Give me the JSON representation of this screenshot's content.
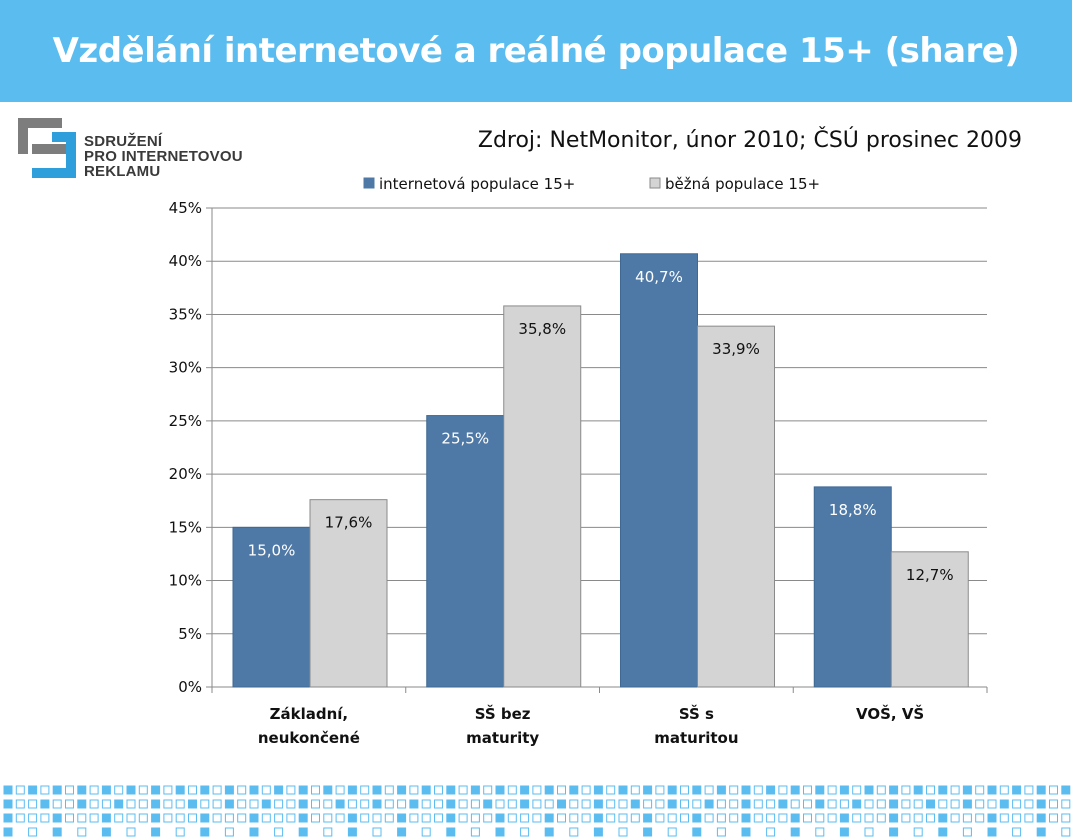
{
  "page": {
    "title": "Vzdělání internetové a reálné populace 15+ (share)",
    "source": "Zdroj: NetMonitor, únor 2010; ČSÚ prosinec 2009",
    "logo": {
      "lines": [
        "SDRUŽENÍ",
        "PRO INTERNETOVOU",
        "REKLAMU"
      ]
    },
    "colors": {
      "header": "#5bbcf0",
      "logo_blue": "#2f9fdc",
      "logo_gray": "#7d7d7d",
      "pattern": "#5bbcf0"
    }
  },
  "chart_data": {
    "type": "bar",
    "categories": [
      [
        "Základní,",
        "neukončené"
      ],
      [
        "SŠ bez",
        "maturity"
      ],
      [
        "SŠ s",
        "maturitou"
      ],
      [
        "VOŠ, VŠ"
      ]
    ],
    "series": [
      {
        "name": "internetová populace 15+",
        "color": "#4e79a7",
        "label_color": "#ffffff",
        "values": [
          15.0,
          25.5,
          40.7,
          18.8
        ],
        "labels": [
          "15,0%",
          "25,5%",
          "40,7%",
          "18,8%"
        ]
      },
      {
        "name": "běžná populace 15+",
        "color": "#d4d4d4",
        "label_color": "#111111",
        "values": [
          17.6,
          35.8,
          33.9,
          12.7
        ],
        "labels": [
          "17,6%",
          "35,8%",
          "33,9%",
          "12,7%"
        ]
      }
    ],
    "ylim": [
      0,
      45
    ],
    "yticks": [
      0,
      5,
      10,
      15,
      20,
      25,
      30,
      35,
      40,
      45
    ],
    "ytick_labels": [
      "0%",
      "5%",
      "10%",
      "15%",
      "20%",
      "25%",
      "30%",
      "35%",
      "40%",
      "45%"
    ],
    "grid": true,
    "legend": "top"
  }
}
